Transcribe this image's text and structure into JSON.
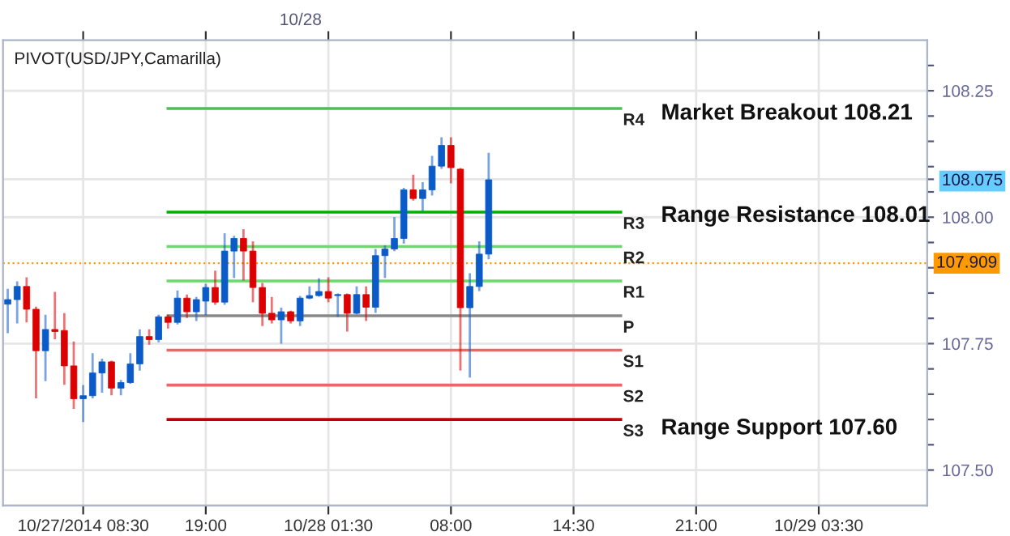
{
  "chart_data": {
    "type": "candlestick",
    "annotations": [
      "PIVOT(USD/JPY,Camarilla)",
      "Market Breakout 108.21",
      "Range Resistance 108.01",
      "Range Support 107.60",
      "10/28"
    ],
    "categories": [
      null,
      null,
      null,
      null,
      null,
      null,
      null,
      null,
      "10/27/2014 08:30",
      null,
      null,
      null,
      null,
      null,
      null,
      null,
      null,
      null,
      null,
      null,
      null,
      "19:00",
      null,
      null,
      null,
      null,
      null,
      null,
      null,
      null,
      null,
      null,
      null,
      null,
      "10/28 01:30",
      null,
      null,
      null,
      null,
      null,
      null,
      null,
      null,
      null,
      null,
      null,
      null,
      "08:00",
      null,
      null,
      null,
      null,
      null,
      null,
      null,
      null,
      null,
      null,
      null,
      null,
      "14:30",
      null,
      null,
      null,
      null,
      null,
      null,
      null,
      null,
      null,
      null,
      null,
      null,
      "21:00",
      null,
      null,
      null,
      null,
      null,
      null,
      null,
      null,
      null,
      null,
      null,
      null,
      "10/29 03:30",
      null,
      null,
      null,
      null,
      null,
      null,
      null,
      null,
      null,
      null,
      null
    ],
    "ohlc": [
      [
        107.828,
        107.856,
        107.773,
        107.837
      ],
      [
        107.837,
        107.871,
        107.792,
        107.863
      ],
      [
        107.863,
        107.879,
        107.794,
        107.818
      ],
      [
        107.818,
        107.821,
        107.644,
        107.736
      ],
      [
        107.736,
        107.805,
        107.678,
        107.778
      ],
      [
        107.778,
        107.85,
        107.761,
        107.774
      ],
      [
        107.776,
        107.808,
        107.671,
        107.706
      ],
      [
        107.706,
        107.752,
        107.623,
        107.641
      ],
      [
        107.641,
        107.666,
        107.597,
        107.647
      ],
      [
        107.647,
        107.729,
        107.644,
        107.692
      ],
      [
        107.692,
        107.718,
        107.655,
        107.714
      ],
      [
        107.714,
        107.714,
        107.65,
        107.662
      ],
      [
        107.662,
        107.676,
        107.65,
        107.673
      ],
      [
        107.673,
        107.729,
        107.673,
        107.71
      ],
      [
        107.71,
        107.776,
        107.699,
        107.764
      ],
      [
        107.764,
        107.776,
        107.75,
        107.758
      ],
      [
        107.758,
        107.805,
        107.755,
        107.803
      ],
      [
        107.803,
        107.805,
        107.782,
        107.792
      ],
      [
        107.792,
        107.853,
        107.79,
        107.84
      ],
      [
        107.84,
        107.845,
        107.803,
        107.813
      ],
      [
        107.813,
        107.84,
        107.797,
        107.837
      ],
      [
        107.834,
        107.866,
        107.808,
        107.861
      ],
      [
        107.861,
        107.892,
        107.829,
        107.832
      ],
      [
        107.832,
        107.966,
        107.829,
        107.933
      ],
      [
        107.933,
        107.961,
        107.882,
        107.958
      ],
      [
        107.958,
        107.974,
        107.877,
        107.933
      ],
      [
        107.933,
        107.95,
        107.834,
        107.861
      ],
      [
        107.861,
        107.868,
        107.787,
        107.81
      ],
      [
        107.81,
        107.84,
        107.792,
        107.797
      ],
      [
        107.797,
        107.819,
        107.752,
        107.813
      ],
      [
        107.813,
        107.813,
        107.792,
        107.795
      ],
      [
        107.795,
        107.842,
        107.787,
        107.84
      ],
      [
        107.84,
        107.861,
        107.84,
        107.845
      ],
      [
        107.845,
        107.877,
        107.845,
        107.853
      ],
      [
        107.853,
        107.879,
        107.834,
        107.84
      ],
      [
        107.845,
        107.847,
        107.805,
        107.847
      ],
      [
        107.847,
        107.847,
        107.776,
        107.81
      ],
      [
        107.81,
        107.861,
        107.81,
        107.847
      ],
      [
        107.847,
        107.861,
        107.797,
        107.822
      ],
      [
        107.822,
        107.935,
        107.813,
        107.924
      ],
      [
        107.924,
        107.942,
        107.882,
        107.937
      ],
      [
        107.937,
        107.998,
        107.935,
        107.958
      ],
      [
        107.958,
        108.056,
        107.95,
        108.054
      ],
      [
        108.054,
        108.082,
        108.035,
        108.037
      ],
      [
        108.037,
        108.067,
        108.014,
        108.054
      ],
      [
        108.054,
        108.119,
        108.045,
        108.101
      ],
      [
        108.101,
        108.156,
        108.098,
        108.142
      ],
      [
        108.142,
        108.156,
        108.069,
        108.098
      ],
      [
        108.095,
        108.095,
        107.699,
        107.821
      ],
      [
        107.821,
        107.887,
        107.685,
        107.863
      ],
      [
        107.863,
        107.95,
        107.856,
        107.927
      ],
      [
        107.927,
        108.125,
        107.919,
        108.074
      ],
      null,
      null,
      null,
      null,
      null,
      null,
      null,
      null,
      null,
      null,
      null,
      null,
      null,
      null,
      null,
      null,
      null,
      null,
      null,
      null,
      null,
      null,
      null,
      null,
      null,
      null,
      null,
      null,
      null,
      null,
      null,
      null,
      null,
      null,
      null,
      null,
      null,
      null,
      null,
      null,
      null,
      null,
      null,
      null,
      null,
      null
    ],
    "colors": [
      "#0a5ac8",
      "#0a5ac8",
      "#dd0000",
      "#dd0000",
      "#0a5ac8",
      "#dd0000",
      "#dd0000",
      "#dd0000",
      "#0a5ac8",
      "#0a5ac8",
      "#0a5ac8",
      "#dd0000",
      "#0a5ac8",
      "#0a5ac8",
      "#0a5ac8",
      "#dd0000",
      "#0a5ac8",
      "#dd0000",
      "#0a5ac8",
      "#dd0000",
      "#0a5ac8",
      "#0a5ac8",
      "#dd0000",
      "#0a5ac8",
      "#0a5ac8",
      "#dd0000",
      "#dd0000",
      "#dd0000",
      "#dd0000",
      "#0a5ac8",
      "#dd0000",
      "#0a5ac8",
      "#0a5ac8",
      "#0a5ac8",
      "#dd0000",
      "#0a5ac8",
      "#dd0000",
      "#0a5ac8",
      "#dd0000",
      "#0a5ac8",
      "#0a5ac8",
      "#0a5ac8",
      "#0a5ac8",
      "#dd0000",
      "#0a5ac8",
      "#0a5ac8",
      "#0a5ac8",
      "#dd0000",
      "#dd0000",
      "#0a5ac8",
      "#0a5ac8",
      "#0a5ac8",
      null,
      null,
      null,
      null,
      null,
      null,
      null,
      null,
      null,
      null,
      null,
      null,
      null,
      null,
      null,
      null,
      null,
      null,
      null,
      null,
      null,
      null,
      null,
      null,
      null,
      null,
      null,
      null,
      null,
      null,
      null,
      null,
      null,
      null,
      null,
      null,
      null,
      null,
      null,
      null,
      null,
      null,
      null,
      null,
      null,
      null
    ],
    "series": [
      {
        "type": "line",
        "name": "R4",
        "color": "#55bb55",
        "values": [
          null,
          null,
          null,
          null,
          null,
          null,
          null,
          null,
          null,
          null,
          null,
          null,
          null,
          null,
          null,
          null,
          null,
          108.215,
          108.215,
          108.215,
          108.215,
          108.215,
          108.215,
          108.215,
          108.215,
          108.215,
          108.215,
          108.215,
          108.215,
          108.215,
          108.215,
          108.215,
          108.215,
          108.215,
          108.215,
          108.215,
          108.215,
          108.215,
          108.215,
          108.215,
          108.215,
          108.215,
          108.215,
          108.215,
          108.215,
          108.215,
          108.215,
          108.215,
          108.215,
          108.215,
          108.215,
          108.215,
          108.215,
          108.215,
          108.215,
          108.215,
          108.215,
          108.215,
          108.215,
          108.215,
          108.215,
          108.215,
          108.215,
          108.215,
          108.215,
          108.215,
          null,
          null,
          null,
          null,
          null,
          null,
          null,
          null,
          null,
          null,
          null,
          null,
          null,
          null,
          null,
          null,
          null,
          null,
          null,
          null,
          null,
          null,
          null,
          null,
          null,
          null,
          null,
          null,
          null,
          null,
          null,
          null
        ]
      },
      {
        "type": "line",
        "name": "R3",
        "color": "#00b000",
        "values": [
          null,
          null,
          null,
          null,
          null,
          null,
          null,
          null,
          null,
          null,
          null,
          null,
          null,
          null,
          null,
          null,
          null,
          108.01,
          108.01,
          108.01,
          108.01,
          108.01,
          108.01,
          108.01,
          108.01,
          108.01,
          108.01,
          108.01,
          108.01,
          108.01,
          108.01,
          108.01,
          108.01,
          108.01,
          108.01,
          108.01,
          108.01,
          108.01,
          108.01,
          108.01,
          108.01,
          108.01,
          108.01,
          108.01,
          108.01,
          108.01,
          108.01,
          108.01,
          108.01,
          108.01,
          108.01,
          108.01,
          108.01,
          108.01,
          108.01,
          108.01,
          108.01,
          108.01,
          108.01,
          108.01,
          108.01,
          108.01,
          108.01,
          108.01,
          108.01,
          108.01,
          null,
          null,
          null,
          null,
          null,
          null,
          null,
          null,
          null,
          null,
          null,
          null,
          null,
          null,
          null,
          null,
          null,
          null,
          null,
          null,
          null,
          null,
          null,
          null,
          null,
          null,
          null,
          null,
          null,
          null,
          null,
          null
        ]
      },
      {
        "type": "line",
        "name": "R2",
        "color": "#66dd66",
        "values": [
          null,
          null,
          null,
          null,
          null,
          null,
          null,
          null,
          null,
          null,
          null,
          null,
          null,
          null,
          null,
          null,
          null,
          107.942,
          107.942,
          107.942,
          107.942,
          107.942,
          107.942,
          107.942,
          107.942,
          107.942,
          107.942,
          107.942,
          107.942,
          107.942,
          107.942,
          107.942,
          107.942,
          107.942,
          107.942,
          107.942,
          107.942,
          107.942,
          107.942,
          107.942,
          107.942,
          107.942,
          107.942,
          107.942,
          107.942,
          107.942,
          107.942,
          107.942,
          107.942,
          107.942,
          107.942,
          107.942,
          107.942,
          107.942,
          107.942,
          107.942,
          107.942,
          107.942,
          107.942,
          107.942,
          107.942,
          107.942,
          107.942,
          107.942,
          107.942,
          107.942,
          null,
          null,
          null,
          null,
          null,
          null,
          null,
          null,
          null,
          null,
          null,
          null,
          null,
          null,
          null,
          null,
          null,
          null,
          null,
          null,
          null,
          null,
          null,
          null,
          null,
          null,
          null,
          null,
          null,
          null,
          null,
          null
        ]
      },
      {
        "type": "line",
        "name": "R1",
        "color": "#66dd66",
        "values": [
          null,
          null,
          null,
          null,
          null,
          null,
          null,
          null,
          null,
          null,
          null,
          null,
          null,
          null,
          null,
          null,
          null,
          107.874,
          107.874,
          107.874,
          107.874,
          107.874,
          107.874,
          107.874,
          107.874,
          107.874,
          107.874,
          107.874,
          107.874,
          107.874,
          107.874,
          107.874,
          107.874,
          107.874,
          107.874,
          107.874,
          107.874,
          107.874,
          107.874,
          107.874,
          107.874,
          107.874,
          107.874,
          107.874,
          107.874,
          107.874,
          107.874,
          107.874,
          107.874,
          107.874,
          107.874,
          107.874,
          107.874,
          107.874,
          107.874,
          107.874,
          107.874,
          107.874,
          107.874,
          107.874,
          107.874,
          107.874,
          107.874,
          107.874,
          107.874,
          107.874,
          null,
          null,
          null,
          null,
          null,
          null,
          null,
          null,
          null,
          null,
          null,
          null,
          null,
          null,
          null,
          null,
          null,
          null,
          null,
          null,
          null,
          null,
          null,
          null,
          null,
          null,
          null,
          null,
          null,
          null,
          null,
          null
        ]
      },
      {
        "type": "line",
        "name": "P",
        "color": "#888888",
        "values": [
          null,
          null,
          null,
          null,
          null,
          null,
          null,
          null,
          null,
          null,
          null,
          null,
          null,
          null,
          null,
          null,
          null,
          107.805,
          107.805,
          107.805,
          107.805,
          107.805,
          107.805,
          107.805,
          107.805,
          107.805,
          107.805,
          107.805,
          107.805,
          107.805,
          107.805,
          107.805,
          107.805,
          107.805,
          107.805,
          107.805,
          107.805,
          107.805,
          107.805,
          107.805,
          107.805,
          107.805,
          107.805,
          107.805,
          107.805,
          107.805,
          107.805,
          107.805,
          107.805,
          107.805,
          107.805,
          107.805,
          107.805,
          107.805,
          107.805,
          107.805,
          107.805,
          107.805,
          107.805,
          107.805,
          107.805,
          107.805,
          107.805,
          107.805,
          107.805,
          107.805,
          null,
          null,
          null,
          null,
          null,
          null,
          null,
          null,
          null,
          null,
          null,
          null,
          null,
          null,
          null,
          null,
          null,
          null,
          null,
          null,
          null,
          null,
          null,
          null,
          null,
          null,
          null,
          null,
          null,
          null,
          null,
          null
        ]
      },
      {
        "type": "line",
        "name": "S1",
        "color": "#ee6666",
        "values": [
          null,
          null,
          null,
          null,
          null,
          null,
          null,
          null,
          null,
          null,
          null,
          null,
          null,
          null,
          null,
          null,
          null,
          107.737,
          107.737,
          107.737,
          107.737,
          107.737,
          107.737,
          107.737,
          107.737,
          107.737,
          107.737,
          107.737,
          107.737,
          107.737,
          107.737,
          107.737,
          107.737,
          107.737,
          107.737,
          107.737,
          107.737,
          107.737,
          107.737,
          107.737,
          107.737,
          107.737,
          107.737,
          107.737,
          107.737,
          107.737,
          107.737,
          107.737,
          107.737,
          107.737,
          107.737,
          107.737,
          107.737,
          107.737,
          107.737,
          107.737,
          107.737,
          107.737,
          107.737,
          107.737,
          107.737,
          107.737,
          107.737,
          107.737,
          107.737,
          107.737,
          null,
          null,
          null,
          null,
          null,
          null,
          null,
          null,
          null,
          null,
          null,
          null,
          null,
          null,
          null,
          null,
          null,
          null,
          null,
          null,
          null,
          null,
          null,
          null,
          null,
          null,
          null,
          null,
          null,
          null,
          null,
          null
        ]
      },
      {
        "type": "line",
        "name": "S2",
        "color": "#ee6666",
        "values": [
          null,
          null,
          null,
          null,
          null,
          null,
          null,
          null,
          null,
          null,
          null,
          null,
          null,
          null,
          null,
          null,
          null,
          107.668,
          107.668,
          107.668,
          107.668,
          107.668,
          107.668,
          107.668,
          107.668,
          107.668,
          107.668,
          107.668,
          107.668,
          107.668,
          107.668,
          107.668,
          107.668,
          107.668,
          107.668,
          107.668,
          107.668,
          107.668,
          107.668,
          107.668,
          107.668,
          107.668,
          107.668,
          107.668,
          107.668,
          107.668,
          107.668,
          107.668,
          107.668,
          107.668,
          107.668,
          107.668,
          107.668,
          107.668,
          107.668,
          107.668,
          107.668,
          107.668,
          107.668,
          107.668,
          107.668,
          107.668,
          107.668,
          107.668,
          107.668,
          107.668,
          null,
          null,
          null,
          null,
          null,
          null,
          null,
          null,
          null,
          null,
          null,
          null,
          null,
          null,
          null,
          null,
          null,
          null,
          null,
          null,
          null,
          null,
          null,
          null,
          null,
          null,
          null,
          null,
          null,
          null,
          null,
          null
        ]
      },
      {
        "type": "line",
        "name": "S3",
        "color": "#c00000",
        "values": [
          null,
          null,
          null,
          null,
          null,
          null,
          null,
          null,
          null,
          null,
          null,
          null,
          null,
          null,
          null,
          null,
          null,
          107.6,
          107.6,
          107.6,
          107.6,
          107.6,
          107.6,
          107.6,
          107.6,
          107.6,
          107.6,
          107.6,
          107.6,
          107.6,
          107.6,
          107.6,
          107.6,
          107.6,
          107.6,
          107.6,
          107.6,
          107.6,
          107.6,
          107.6,
          107.6,
          107.6,
          107.6,
          107.6,
          107.6,
          107.6,
          107.6,
          107.6,
          107.6,
          107.6,
          107.6,
          107.6,
          107.6,
          107.6,
          107.6,
          107.6,
          107.6,
          107.6,
          107.6,
          107.6,
          107.6,
          107.6,
          107.6,
          107.6,
          107.6,
          107.6,
          null,
          null,
          null,
          null,
          null,
          null,
          null,
          null,
          null,
          null,
          null,
          null,
          null,
          null,
          null,
          null,
          null,
          null,
          null,
          null,
          null,
          null,
          null,
          null,
          null,
          null,
          null,
          null,
          null,
          null,
          null,
          null
        ]
      }
    ],
    "ref_lines": [
      {
        "axis": "y",
        "value": 107.909,
        "label": "107.909",
        "color": "#ff9900",
        "line_style": "dotted"
      }
    ],
    "ylim": [
      107.43,
      108.35
    ],
    "yticks": [
      {
        "value": 107.5,
        "label": "107.50"
      },
      {
        "value": 107.55,
        "label": null
      },
      {
        "value": 107.6,
        "label": null
      },
      {
        "value": 107.65,
        "label": null
      },
      {
        "value": 107.7,
        "label": null
      },
      {
        "value": 107.75,
        "label": "107.75"
      },
      {
        "value": 107.8,
        "label": null
      },
      {
        "value": 107.85,
        "label": null
      },
      {
        "value": 107.9,
        "label": null
      },
      {
        "value": 107.95,
        "label": null
      },
      {
        "value": 108.0,
        "label": "108.00"
      },
      {
        "value": 108.05,
        "label": null
      },
      {
        "value": 108.075,
        "label": "108.075"
      },
      {
        "value": 108.1,
        "label": null
      },
      {
        "value": 108.15,
        "label": null
      },
      {
        "value": 108.2,
        "label": null
      },
      {
        "value": 108.25,
        "label": "108.25"
      },
      {
        "value": 108.3,
        "label": null
      }
    ],
    "grid": true
  }
}
